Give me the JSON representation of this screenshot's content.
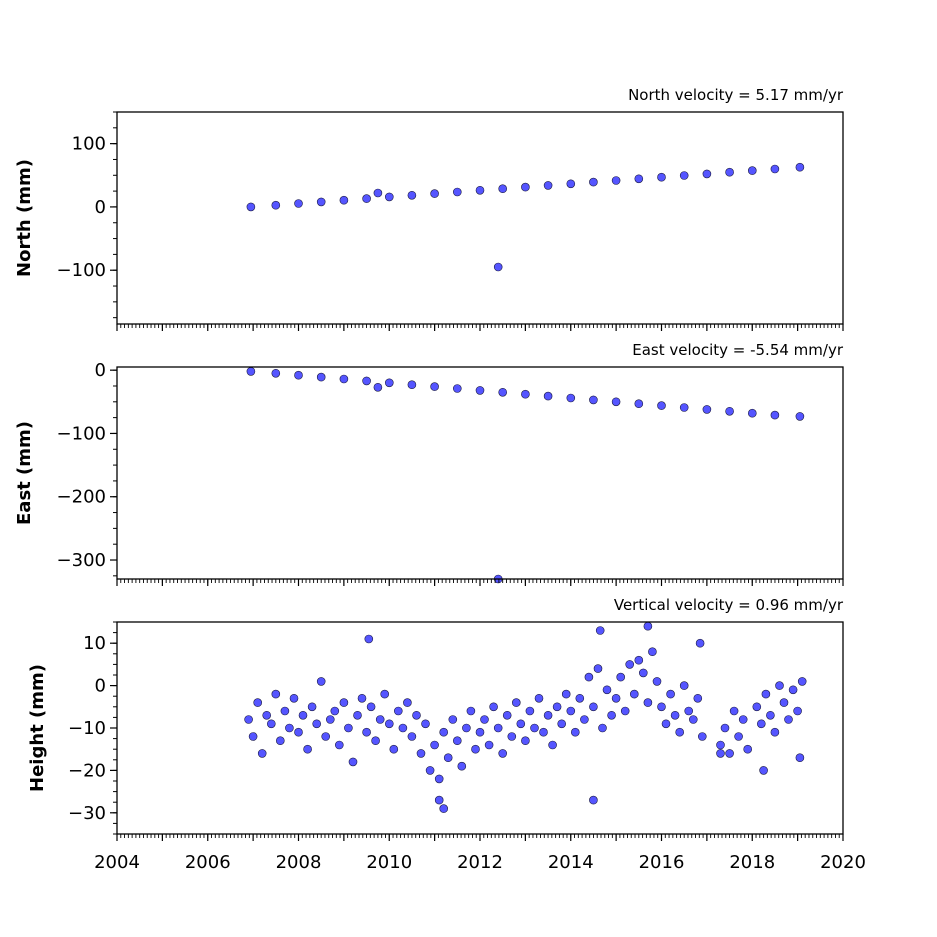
{
  "chart_data": [
    {
      "type": "scatter",
      "title": "North velocity = 5.17 mm/yr",
      "ylabel": "North (mm)",
      "xlim": [
        2004,
        2020
      ],
      "ylim": [
        -185,
        150
      ],
      "yticks": [
        100,
        0,
        -100
      ],
      "ytick_labels": [
        "100",
        "0",
        "−100"
      ],
      "series": [
        {
          "color": "#5555ff",
          "x": [
            2006.95,
            2007.5,
            2008.0,
            2008.5,
            2009.0,
            2009.5,
            2010.0,
            2010.5,
            2011.0,
            2011.5,
            2012.0,
            2012.5,
            2013.0,
            2013.5,
            2014.0,
            2014.5,
            2015.0,
            2015.5,
            2016.0,
            2016.5,
            2017.0,
            2017.5,
            2018.0,
            2018.5,
            2019.05,
            2009.75,
            2012.4
          ],
          "y": [
            0,
            2.8,
            5.4,
            8.0,
            10.6,
            13.2,
            15.8,
            18.4,
            21.0,
            23.6,
            26.2,
            28.8,
            31.4,
            34.0,
            36.6,
            39.2,
            41.8,
            44.4,
            47.0,
            49.6,
            52.2,
            54.8,
            57.4,
            60.0,
            62.7,
            22.0,
            -95.0
          ]
        }
      ]
    },
    {
      "type": "scatter",
      "title": "East velocity = -5.54 mm/yr",
      "ylabel": "East (mm)",
      "xlim": [
        2004,
        2020
      ],
      "ylim": [
        -330,
        5
      ],
      "yticks": [
        0,
        -100,
        -200,
        -300
      ],
      "ytick_labels": [
        "0",
        "−100",
        "−200",
        "−300"
      ],
      "series": [
        {
          "color": "#5555ff",
          "x": [
            2006.95,
            2007.5,
            2008.0,
            2008.5,
            2009.0,
            2009.5,
            2010.0,
            2010.5,
            2011.0,
            2011.5,
            2012.0,
            2012.5,
            2013.0,
            2013.5,
            2014.0,
            2014.5,
            2015.0,
            2015.5,
            2016.0,
            2016.5,
            2017.0,
            2017.5,
            2018.0,
            2018.5,
            2019.05,
            2009.75,
            2012.4
          ],
          "y": [
            -2,
            -5,
            -8,
            -11,
            -14,
            -17,
            -20,
            -23,
            -26,
            -29,
            -32,
            -35,
            -38,
            -41,
            -44,
            -47,
            -50,
            -53,
            -56,
            -59,
            -62,
            -65,
            -68,
            -71,
            -73,
            -27,
            -330
          ]
        }
      ]
    },
    {
      "type": "scatter",
      "title": "Vertical velocity = 0.96 mm/yr",
      "ylabel": "Height (mm)",
      "xlim": [
        2004,
        2020
      ],
      "ylim": [
        -35,
        15
      ],
      "yticks": [
        10,
        0,
        -10,
        -20,
        -30
      ],
      "ytick_labels": [
        "10",
        "0",
        "−10",
        "−20",
        "−30"
      ],
      "xticks": [
        2004,
        2006,
        2008,
        2010,
        2012,
        2014,
        2016,
        2018,
        2020
      ],
      "xtick_labels": [
        "2004",
        "2006",
        "2008",
        "2010",
        "2012",
        "2014",
        "2016",
        "2018",
        "2020"
      ],
      "series": [
        {
          "color": "#5555ff",
          "x": [
            2006.9,
            2007.0,
            2007.1,
            2007.2,
            2007.3,
            2007.4,
            2007.5,
            2007.6,
            2007.7,
            2007.8,
            2007.9,
            2008.0,
            2008.1,
            2008.2,
            2008.3,
            2008.4,
            2008.5,
            2008.6,
            2008.7,
            2008.8,
            2008.9,
            2009.0,
            2009.1,
            2009.2,
            2009.3,
            2009.4,
            2009.5,
            2009.6,
            2009.7,
            2009.8,
            2009.9,
            2010.0,
            2010.1,
            2010.2,
            2010.3,
            2010.4,
            2010.5,
            2010.6,
            2010.7,
            2010.8,
            2010.9,
            2011.0,
            2011.1,
            2011.2,
            2011.3,
            2011.4,
            2011.5,
            2011.6,
            2011.7,
            2011.8,
            2011.9,
            2012.0,
            2012.1,
            2012.2,
            2012.3,
            2012.4,
            2012.5,
            2012.6,
            2012.7,
            2012.8,
            2012.9,
            2013.0,
            2013.1,
            2013.2,
            2013.3,
            2013.4,
            2013.5,
            2013.6,
            2013.7,
            2013.8,
            2013.9,
            2014.0,
            2014.1,
            2014.2,
            2014.3,
            2014.4,
            2014.5,
            2014.6,
            2014.7,
            2014.8,
            2014.9,
            2015.0,
            2015.1,
            2015.2,
            2015.3,
            2015.4,
            2015.5,
            2015.6,
            2015.7,
            2015.8,
            2015.9,
            2016.0,
            2016.1,
            2016.2,
            2016.3,
            2016.4,
            2016.5,
            2016.6,
            2016.7,
            2016.8,
            2016.9,
            2017.3,
            2017.4,
            2017.5,
            2017.6,
            2017.7,
            2017.8,
            2017.9,
            2018.1,
            2018.2,
            2018.3,
            2018.4,
            2018.5,
            2018.6,
            2018.7,
            2018.8,
            2018.9,
            2019.0,
            2019.1,
            2009.55,
            2011.1,
            2011.2,
            2014.5,
            2014.65,
            2015.7,
            2016.85,
            2017.3,
            2018.25,
            2019.05
          ],
          "y": [
            -8,
            -12,
            -4,
            -16,
            -7,
            -9,
            -2,
            -13,
            -6,
            -10,
            -3,
            -11,
            -7,
            -15,
            -5,
            -9,
            1,
            -12,
            -8,
            -6,
            -14,
            -4,
            -10,
            -18,
            -7,
            -3,
            -11,
            -5,
            -13,
            -8,
            -2,
            -9,
            -15,
            -6,
            -10,
            -4,
            -12,
            -7,
            -16,
            -9,
            -20,
            -14,
            -22,
            -11,
            -17,
            -8,
            -13,
            -19,
            -10,
            -6,
            -15,
            -11,
            -8,
            -14,
            -5,
            -10,
            -16,
            -7,
            -12,
            -4,
            -9,
            -13,
            -6,
            -10,
            -3,
            -11,
            -7,
            -14,
            -5,
            -9,
            -2,
            -6,
            -11,
            -3,
            -8,
            2,
            -5,
            4,
            -10,
            -1,
            -7,
            -3,
            2,
            -6,
            5,
            -2,
            6,
            3,
            -4,
            8,
            1,
            -5,
            -9,
            -2,
            -7,
            -11,
            0,
            -6,
            -8,
            -3,
            -12,
            -14,
            -10,
            -16,
            -6,
            -12,
            -8,
            -15,
            -5,
            -9,
            -2,
            -7,
            -11,
            0,
            -4,
            -8,
            -1,
            -6,
            1,
            11,
            -27,
            -29,
            -27,
            13,
            14,
            10,
            -16,
            -20,
            -17
          ]
        }
      ]
    }
  ]
}
